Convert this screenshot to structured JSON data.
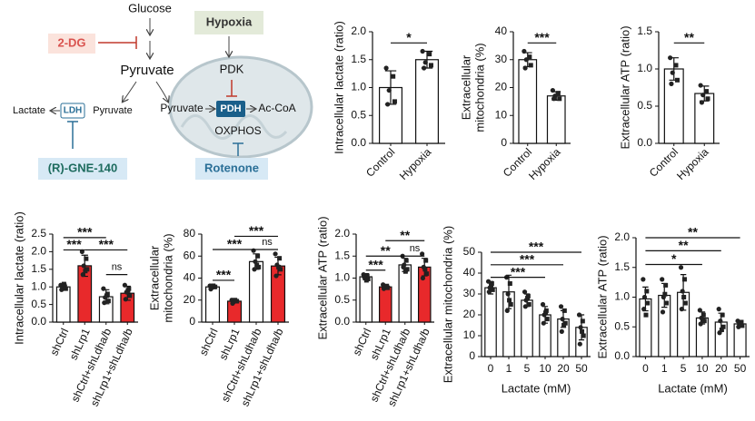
{
  "diagram": {
    "glucose": "Glucose",
    "dg": "2-DG",
    "pyruvate_main": "Pyruvate",
    "hypoxia": "Hypoxia",
    "pdk": "PDK",
    "lactate": "Lactate",
    "ldh": "LDH",
    "pyruvate_left": "Pyruvate",
    "pyruvate_mito": "Pyruvate",
    "pdh": "PDH",
    "acoa": "Ac-CoA",
    "oxphos": "OXPHOS",
    "gne": "(R)-GNE-140",
    "rotenone": "Rotenone"
  },
  "chart_data": [
    {
      "type": "bar",
      "ylabel": [
        "Intracellular lactate (ratio)"
      ],
      "categories": [
        "Control",
        "Hypoxia"
      ],
      "colors": [
        "#ffffff",
        "#ffffff"
      ],
      "values": [
        1.0,
        1.5
      ],
      "errors": [
        0.3,
        0.15
      ],
      "points": [
        [
          1.35,
          1.2,
          0.95,
          0.75,
          0.7
        ],
        [
          1.65,
          1.6,
          1.45,
          1.4,
          1.35
        ]
      ],
      "ylim": [
        0,
        2.0
      ],
      "yticks": [
        {
          "value": 0,
          "label": "0.0"
        },
        {
          "value": 0.5,
          "label": "0.5"
        },
        {
          "value": 1,
          "label": "1.0"
        },
        {
          "value": 1.5,
          "label": "1.5"
        },
        {
          "value": 2,
          "label": "2.0"
        }
      ],
      "significance": [
        {
          "from": 0,
          "to": 1,
          "y": 1.8,
          "label": "*"
        }
      ]
    },
    {
      "type": "bar",
      "ylabel": [
        "Extracellular",
        "mitochondria (%)"
      ],
      "categories": [
        "Control",
        "Hypoxia"
      ],
      "colors": [
        "#ffffff",
        "#ffffff"
      ],
      "values": [
        30,
        17
      ],
      "errors": [
        2.5,
        1.5
      ],
      "points": [
        [
          33,
          31,
          30,
          28,
          27
        ],
        [
          19,
          18,
          17,
          16,
          16
        ]
      ],
      "ylim": [
        0,
        40
      ],
      "yticks": [
        0,
        10,
        20,
        30,
        40
      ],
      "significance": [
        {
          "from": 0,
          "to": 1,
          "y": 36,
          "label": "***"
        }
      ]
    },
    {
      "type": "bar",
      "ylabel": [
        "Extracellular ATP (ratio)"
      ],
      "categories": [
        "Control",
        "Hypoxia"
      ],
      "colors": [
        "#ffffff",
        "#ffffff"
      ],
      "values": [
        1.0,
        0.67
      ],
      "errors": [
        0.15,
        0.1
      ],
      "points": [
        [
          1.15,
          1.05,
          0.95,
          0.85,
          0.8
        ],
        [
          0.78,
          0.7,
          0.65,
          0.6,
          0.55
        ]
      ],
      "ylim": [
        0,
        1.5
      ],
      "yticks": [
        {
          "value": 0,
          "label": "0.0"
        },
        {
          "value": 0.5,
          "label": "0.5"
        },
        {
          "value": 1,
          "label": "1.0"
        },
        {
          "value": 1.5,
          "label": "1.5"
        }
      ],
      "significance": [
        {
          "from": 0,
          "to": 1,
          "y": 1.35,
          "label": "**"
        }
      ]
    },
    {
      "type": "bar",
      "ylabel": [
        "Intracellular lactate (ratio)"
      ],
      "categories": [
        "shCtrl",
        "shLrp1",
        "shCtrl+shLdha/b",
        "shLrp1+shLdha/b"
      ],
      "colors": [
        "#ffffff",
        "#e8292b",
        "#ffffff",
        "#e8292b"
      ],
      "values": [
        1.0,
        1.6,
        0.72,
        0.82
      ],
      "errors": [
        0.08,
        0.3,
        0.2,
        0.2
      ],
      "points": [
        [
          1.05,
          1.0,
          0.98,
          0.95,
          0.92,
          1.08
        ],
        [
          2.0,
          1.8,
          1.6,
          1.5,
          1.35,
          1.45
        ],
        [
          0.95,
          0.8,
          0.7,
          0.6,
          0.55,
          0.75
        ],
        [
          1.05,
          0.95,
          0.85,
          0.75,
          0.65,
          0.9
        ]
      ],
      "ylim": [
        0,
        2.5
      ],
      "yticks": [
        {
          "value": 0,
          "label": "0.0"
        },
        {
          "value": 0.5,
          "label": "0.5"
        },
        {
          "value": 1,
          "label": "1.0"
        },
        {
          "value": 1.5,
          "label": "1.5"
        },
        {
          "value": 2,
          "label": "2.0"
        },
        {
          "value": 2.5,
          "label": "2.5"
        }
      ],
      "significance": [
        {
          "from": 0,
          "to": 2,
          "y": 2.4,
          "label": "***"
        },
        {
          "from": 0,
          "to": 1,
          "y": 2.05,
          "label": "***"
        },
        {
          "from": 1,
          "to": 3,
          "y": 2.05,
          "label": "***"
        },
        {
          "from": 2,
          "to": 3,
          "y": 1.35,
          "label": "ns"
        }
      ]
    },
    {
      "type": "bar",
      "ylabel": [
        "Extracellular",
        "mitochondria (%)"
      ],
      "categories": [
        "shCtrl",
        "shLrp1",
        "shCtrl+shLdha/b",
        "shLrp1+shLdha/b"
      ],
      "colors": [
        "#ffffff",
        "#e8292b",
        "#ffffff",
        "#e8292b"
      ],
      "values": [
        32,
        19,
        55,
        51
      ],
      "errors": [
        1.5,
        1.5,
        7,
        8
      ],
      "points": [
        [
          33,
          32,
          31,
          32,
          30,
          33
        ],
        [
          20,
          19,
          18,
          19,
          17,
          20
        ],
        [
          65,
          60,
          55,
          50,
          48,
          52
        ],
        [
          62,
          58,
          52,
          48,
          42,
          50
        ]
      ],
      "ylim": [
        0,
        80
      ],
      "yticks": [
        0,
        20,
        40,
        60,
        80
      ],
      "significance": [
        {
          "from": 0,
          "to": 1,
          "y": 38,
          "label": "***"
        },
        {
          "from": 0,
          "to": 2,
          "y": 66,
          "label": "***"
        },
        {
          "from": 1,
          "to": 3,
          "y": 78,
          "label": "***"
        },
        {
          "from": 2,
          "to": 3,
          "y": 66,
          "label": "ns"
        }
      ]
    },
    {
      "type": "bar",
      "ylabel": [
        "Extracellular ATP (ratio)"
      ],
      "categories": [
        "shCtrl",
        "shLrp1",
        "shCtrl+shLdha/b",
        "shLrp1+shLdha/b"
      ],
      "colors": [
        "#ffffff",
        "#e8292b",
        "#ffffff",
        "#e8292b"
      ],
      "values": [
        1.03,
        0.8,
        1.3,
        1.25
      ],
      "errors": [
        0.07,
        0.05,
        0.15,
        0.2
      ],
      "points": [
        [
          1.08,
          1.05,
          1.0,
          0.98,
          1.02,
          0.95
        ],
        [
          0.85,
          0.82,
          0.8,
          0.78,
          0.76,
          0.8
        ],
        [
          1.5,
          1.4,
          1.3,
          1.2,
          1.25,
          1.15
        ],
        [
          1.55,
          1.4,
          1.25,
          1.1,
          1.0,
          1.2
        ]
      ],
      "ylim": [
        0,
        2.0
      ],
      "yticks": [
        {
          "value": 0,
          "label": "0.0"
        },
        {
          "value": 0.5,
          "label": "0.5"
        },
        {
          "value": 1,
          "label": "1.0"
        },
        {
          "value": 1.5,
          "label": "1.5"
        },
        {
          "value": 2,
          "label": "2.0"
        }
      ],
      "significance": [
        {
          "from": 0,
          "to": 1,
          "y": 1.18,
          "label": "***"
        },
        {
          "from": 0,
          "to": 2,
          "y": 1.5,
          "label": "**"
        },
        {
          "from": 1,
          "to": 3,
          "y": 1.85,
          "label": "**"
        },
        {
          "from": 2,
          "to": 3,
          "y": 1.5,
          "label": "ns"
        }
      ]
    },
    {
      "type": "bar",
      "ylabel": [
        "Extracellular mitochondria (%)"
      ],
      "xlabel": "Lactate (mM)",
      "categories": [
        "0",
        "1",
        "5",
        "10",
        "20",
        "50"
      ],
      "colors": [
        "#ffffff",
        "#ffffff",
        "#ffffff",
        "#ffffff",
        "#ffffff",
        "#ffffff"
      ],
      "values": [
        33,
        31,
        27,
        20,
        18,
        14
      ],
      "errors": [
        3,
        8,
        3,
        4,
        4,
        6
      ],
      "points": [
        [
          36,
          35,
          33,
          32,
          31,
          34
        ],
        [
          38,
          35,
          30,
          25,
          22,
          27
        ],
        [
          31,
          29,
          27,
          25,
          24,
          28
        ],
        [
          25,
          22,
          20,
          18,
          16,
          21
        ],
        [
          24,
          22,
          18,
          16,
          12,
          15
        ],
        [
          20,
          17,
          14,
          10,
          6,
          12
        ]
      ],
      "ylim": [
        0,
        50
      ],
      "yticks": [
        0,
        10,
        20,
        30,
        40,
        50
      ],
      "significance": [
        {
          "from": 0,
          "to": 3,
          "y": 38,
          "label": "***"
        },
        {
          "from": 0,
          "to": 4,
          "y": 44,
          "label": "***"
        },
        {
          "from": 0,
          "to": 5,
          "y": 50,
          "label": "***"
        }
      ]
    },
    {
      "type": "bar",
      "ylabel": [
        "Extracellular ATP (ratio)"
      ],
      "xlabel": "Lactate (mM)",
      "categories": [
        "0",
        "1",
        "5",
        "10",
        "20",
        "50"
      ],
      "colors": [
        "#ffffff",
        "#ffffff",
        "#ffffff",
        "#ffffff",
        "#ffffff",
        "#ffffff"
      ],
      "values": [
        0.97,
        1.03,
        1.08,
        0.65,
        0.58,
        0.55
      ],
      "errors": [
        0.2,
        0.2,
        0.3,
        0.1,
        0.15,
        0.05
      ],
      "points": [
        [
          1.3,
          1.1,
          1.0,
          0.9,
          0.8,
          0.7
        ],
        [
          1.3,
          1.2,
          1.0,
          0.9,
          0.75,
          1.05
        ],
        [
          1.5,
          1.3,
          1.1,
          0.9,
          0.8,
          1.0
        ],
        [
          0.78,
          0.7,
          0.65,
          0.6,
          0.55,
          0.62
        ],
        [
          0.8,
          0.7,
          0.6,
          0.5,
          0.4,
          0.45
        ],
        [
          0.6,
          0.58,
          0.55,
          0.52,
          0.5,
          0.55
        ]
      ],
      "ylim": [
        0,
        2.0
      ],
      "yticks": [
        {
          "value": 0,
          "label": "0.0"
        },
        {
          "value": 0.5,
          "label": "0.5"
        },
        {
          "value": 1,
          "label": "1.0"
        },
        {
          "value": 1.5,
          "label": "1.5"
        },
        {
          "value": 2,
          "label": "2.0"
        }
      ],
      "significance": [
        {
          "from": 0,
          "to": 3,
          "y": 1.55,
          "label": "*"
        },
        {
          "from": 0,
          "to": 4,
          "y": 1.78,
          "label": "**"
        },
        {
          "from": 0,
          "to": 5,
          "y": 2.0,
          "label": "**"
        }
      ]
    }
  ]
}
